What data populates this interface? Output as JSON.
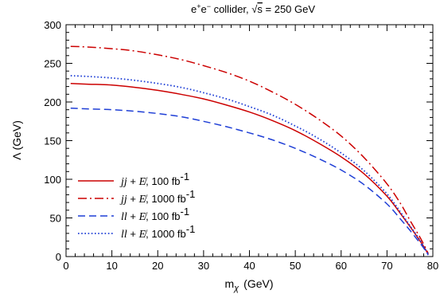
{
  "chart_data": {
    "type": "line",
    "title": "e⁺ e⁻ collider,  √s = 250 GeV",
    "title_parts": {
      "prefix": "e",
      "sup1": "+",
      "mid": "e",
      "sup2": "−",
      "rest": " collider, ",
      "sqrt": "√",
      "s": "s",
      "tail": " = 250 GeV"
    },
    "xlabel": "m",
    "xlabel_sub": "χ",
    "xlabel_unit": "(GeV)",
    "ylabel": "Λ  (GeV)",
    "xlim": [
      0,
      80
    ],
    "ylim": [
      0,
      300
    ],
    "xticks": [
      0,
      10,
      20,
      30,
      40,
      50,
      60,
      70,
      80
    ],
    "yticks": [
      0,
      50,
      100,
      150,
      200,
      250,
      300
    ],
    "grid": false,
    "legend_position": "bottom-left",
    "series": [
      {
        "name": "jj + E̸,  100 fb⁻¹",
        "legend": {
          "proc": "jj",
          "plus": " + ",
          "met": "E̸",
          "lumi": ",  100 fb",
          "sup": "-1"
        },
        "color": "#cc0000",
        "style": "solid",
        "x": [
          1,
          5,
          10,
          15,
          20,
          25,
          30,
          35,
          40,
          45,
          50,
          55,
          60,
          65,
          70,
          73,
          75,
          77,
          78,
          79
        ],
        "y": [
          224,
          223,
          222,
          219,
          215,
          210,
          204,
          196,
          187,
          176,
          163,
          147,
          129,
          107,
          78,
          55,
          39,
          22,
          13,
          3
        ]
      },
      {
        "name": "jj + E̸,  1000 fb⁻¹",
        "legend": {
          "proc": "jj",
          "plus": " + ",
          "met": "E̸",
          "lumi": ",  1000 fb",
          "sup": "-1"
        },
        "color": "#cc0000",
        "style": "dashdot",
        "x": [
          1,
          5,
          10,
          15,
          20,
          25,
          30,
          35,
          40,
          45,
          50,
          55,
          60,
          65,
          70,
          73,
          75,
          77,
          78,
          79
        ],
        "y": [
          272,
          271,
          269,
          266,
          261,
          255,
          247,
          238,
          227,
          213,
          197,
          178,
          156,
          128,
          94,
          68,
          47,
          27,
          16,
          4
        ]
      },
      {
        "name": "ll + E̸,  100 fb⁻¹",
        "legend": {
          "proc": "ll",
          "plus": " + ",
          "met": "E̸",
          "lumi": ",  100 fb",
          "sup": "-1"
        },
        "color": "#1f3fd6",
        "style": "dashed",
        "x": [
          1,
          5,
          10,
          15,
          20,
          25,
          30,
          35,
          40,
          45,
          50,
          55,
          60,
          65,
          70,
          73,
          75,
          77,
          78,
          79
        ],
        "y": [
          192,
          191,
          190,
          188,
          185,
          181,
          175,
          168,
          160,
          151,
          140,
          127,
          112,
          93,
          68,
          48,
          34,
          19,
          11,
          2
        ]
      },
      {
        "name": "ll + E̸,  1000 fb⁻¹",
        "legend": {
          "proc": "ll",
          "plus": " + ",
          "met": "E̸",
          "lumi": ",  1000 fb",
          "sup": "-1"
        },
        "color": "#1f3fd6",
        "style": "dotted",
        "x": [
          1,
          5,
          10,
          15,
          20,
          25,
          30,
          35,
          40,
          45,
          50,
          55,
          60,
          65,
          70,
          73,
          75,
          77,
          78,
          79
        ],
        "y": [
          234,
          233,
          231,
          228,
          224,
          219,
          212,
          204,
          194,
          183,
          169,
          153,
          134,
          111,
          81,
          57,
          40,
          23,
          13,
          3
        ]
      }
    ]
  }
}
